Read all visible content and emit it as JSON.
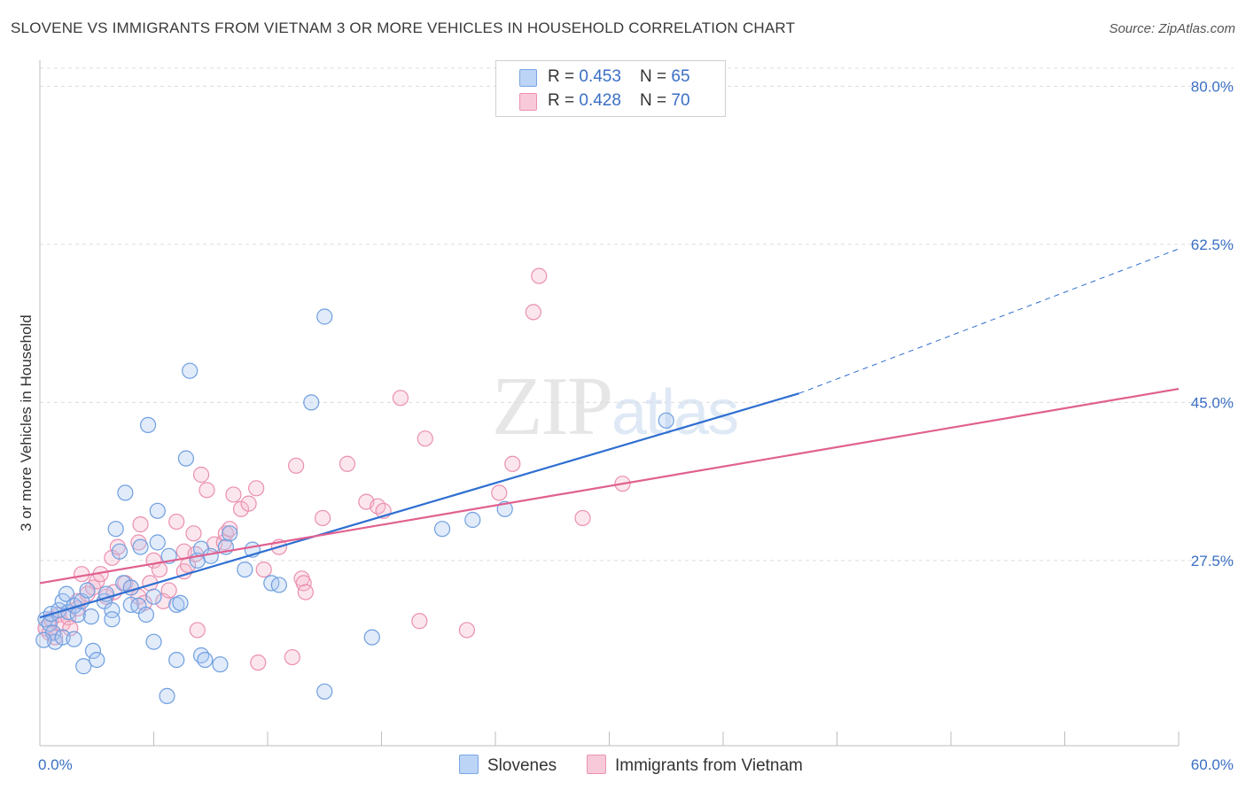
{
  "title": "SLOVENE VS IMMIGRANTS FROM VIETNAM 3 OR MORE VEHICLES IN HOUSEHOLD CORRELATION CHART",
  "source": "Source: ZipAtlas.com",
  "watermark": {
    "zip": "ZIP",
    "atlas": "atlas"
  },
  "colors": {
    "blue": "#2e6fd1",
    "blue_fill": "#a9c7f0",
    "pink": "#e0608f",
    "pink_fill": "#f5b6cb",
    "tick": "#3a6fc4"
  },
  "legend": [
    {
      "r_label": "R = ",
      "r": "0.453",
      "n_label": "N = ",
      "n": "65"
    },
    {
      "r_label": "R = ",
      "r": "0.428",
      "n_label": "N = ",
      "n": "70"
    }
  ],
  "chart_data": {
    "type": "scatter",
    "title": "SLOVENE VS IMMIGRANTS FROM VIETNAM 3 OR MORE VEHICLES IN HOUSEHOLD CORRELATION CHART",
    "xlabel": "",
    "ylabel": "3 or more Vehicles in Household",
    "xlim": [
      0,
      60
    ],
    "ylim": [
      7,
      82
    ],
    "x_tick_labels": [
      "0.0%",
      "60.0%"
    ],
    "y_ticks": [
      27.5,
      45.0,
      62.5,
      80.0
    ],
    "y_tick_labels": [
      "27.5%",
      "45.0%",
      "62.5%",
      "80.0%"
    ],
    "grid": true,
    "legend_position": "top-center",
    "series": [
      {
        "name": "Slovenes",
        "color": "#2e6fd1",
        "r": 0.453,
        "n": 65,
        "trend": {
          "x": [
            0,
            40
          ],
          "y": [
            21.2,
            46.0
          ],
          "dashed_to": [
            60,
            62.0
          ]
        },
        "points": [
          [
            0.3,
            21.0
          ],
          [
            0.5,
            20.5
          ],
          [
            0.6,
            21.6
          ],
          [
            0.7,
            19.5
          ],
          [
            0.8,
            18.5
          ],
          [
            1.0,
            22.0
          ],
          [
            1.2,
            23.0
          ],
          [
            1.2,
            19.0
          ],
          [
            1.4,
            23.8
          ],
          [
            1.5,
            21.8
          ],
          [
            1.8,
            22.5
          ],
          [
            1.8,
            18.8
          ],
          [
            2.0,
            21.5
          ],
          [
            2.2,
            23.0
          ],
          [
            2.3,
            15.8
          ],
          [
            2.5,
            24.2
          ],
          [
            2.7,
            21.3
          ],
          [
            2.8,
            17.5
          ],
          [
            3.0,
            16.5
          ],
          [
            3.4,
            23.0
          ],
          [
            3.5,
            23.8
          ],
          [
            3.8,
            22.0
          ],
          [
            3.8,
            21.0
          ],
          [
            4.0,
            31.0
          ],
          [
            4.2,
            28.5
          ],
          [
            4.4,
            25.0
          ],
          [
            4.5,
            35.0
          ],
          [
            4.8,
            24.5
          ],
          [
            4.8,
            22.6
          ],
          [
            5.2,
            22.5
          ],
          [
            5.3,
            29.0
          ],
          [
            5.6,
            21.5
          ],
          [
            5.7,
            42.5
          ],
          [
            6.0,
            23.5
          ],
          [
            6.0,
            18.5
          ],
          [
            6.2,
            33.0
          ],
          [
            6.2,
            29.5
          ],
          [
            6.8,
            28.0
          ],
          [
            6.7,
            12.5
          ],
          [
            7.2,
            22.6
          ],
          [
            7.4,
            22.8
          ],
          [
            7.2,
            16.5
          ],
          [
            7.7,
            38.8
          ],
          [
            7.9,
            48.5
          ],
          [
            8.3,
            27.5
          ],
          [
            8.5,
            28.8
          ],
          [
            8.5,
            17.0
          ],
          [
            8.7,
            16.5
          ],
          [
            9.0,
            28.0
          ],
          [
            9.5,
            16.0
          ],
          [
            9.8,
            29.0
          ],
          [
            10.0,
            30.5
          ],
          [
            10.8,
            26.5
          ],
          [
            11.2,
            28.7
          ],
          [
            12.2,
            25.0
          ],
          [
            12.6,
            24.8
          ],
          [
            14.3,
            45.0
          ],
          [
            15.0,
            54.5
          ],
          [
            15.0,
            13.0
          ],
          [
            17.5,
            19.0
          ],
          [
            21.2,
            31.0
          ],
          [
            22.8,
            32.0
          ],
          [
            24.5,
            33.2
          ],
          [
            33.0,
            43.0
          ],
          [
            0.2,
            18.7
          ]
        ]
      },
      {
        "name": "Immigrants from Vietnam",
        "color": "#e0608f",
        "r": 0.428,
        "n": 70,
        "trend": {
          "x": [
            0,
            60
          ],
          "y": [
            25.0,
            46.5
          ]
        },
        "points": [
          [
            0.3,
            20.0
          ],
          [
            0.5,
            19.5
          ],
          [
            0.6,
            21.0
          ],
          [
            0.8,
            19.0
          ],
          [
            1.0,
            21.5
          ],
          [
            1.2,
            20.5
          ],
          [
            1.5,
            21.2
          ],
          [
            1.6,
            20.0
          ],
          [
            2.0,
            23.0
          ],
          [
            2.0,
            22.2
          ],
          [
            2.2,
            26.0
          ],
          [
            2.5,
            23.8
          ],
          [
            2.8,
            24.5
          ],
          [
            3.0,
            25.2
          ],
          [
            3.2,
            26.0
          ],
          [
            3.5,
            23.5
          ],
          [
            3.9,
            24.0
          ],
          [
            3.8,
            27.8
          ],
          [
            4.1,
            29.0
          ],
          [
            4.5,
            25.0
          ],
          [
            4.8,
            24.5
          ],
          [
            5.2,
            23.5
          ],
          [
            5.2,
            29.5
          ],
          [
            5.3,
            31.5
          ],
          [
            5.5,
            22.8
          ],
          [
            5.8,
            25.0
          ],
          [
            6.0,
            27.5
          ],
          [
            6.3,
            26.5
          ],
          [
            6.5,
            23.0
          ],
          [
            6.8,
            24.2
          ],
          [
            7.2,
            31.8
          ],
          [
            7.6,
            28.5
          ],
          [
            7.6,
            26.3
          ],
          [
            7.8,
            27.0
          ],
          [
            8.1,
            30.5
          ],
          [
            8.2,
            28.2
          ],
          [
            8.3,
            19.8
          ],
          [
            8.5,
            37.0
          ],
          [
            8.8,
            35.3
          ],
          [
            9.2,
            29.3
          ],
          [
            9.7,
            29.5
          ],
          [
            9.8,
            30.5
          ],
          [
            10.0,
            31.0
          ],
          [
            10.2,
            34.8
          ],
          [
            10.6,
            33.2
          ],
          [
            11.0,
            33.8
          ],
          [
            11.4,
            35.5
          ],
          [
            11.5,
            16.2
          ],
          [
            11.8,
            26.5
          ],
          [
            12.6,
            29.0
          ],
          [
            13.5,
            38.0
          ],
          [
            13.3,
            16.8
          ],
          [
            13.8,
            25.5
          ],
          [
            13.9,
            25.0
          ],
          [
            14.0,
            24.0
          ],
          [
            14.9,
            32.2
          ],
          [
            16.2,
            38.2
          ],
          [
            17.2,
            34.0
          ],
          [
            17.8,
            33.5
          ],
          [
            18.1,
            33.0
          ],
          [
            19.0,
            45.5
          ],
          [
            20.0,
            20.8
          ],
          [
            20.3,
            41.0
          ],
          [
            22.5,
            19.8
          ],
          [
            24.2,
            35.0
          ],
          [
            24.9,
            38.2
          ],
          [
            26.0,
            55.0
          ],
          [
            26.3,
            59.0
          ],
          [
            30.7,
            36.0
          ],
          [
            28.6,
            32.2
          ]
        ]
      }
    ]
  },
  "bottom_legend": [
    {
      "name": "Slovenes"
    },
    {
      "name": "Immigrants from Vietnam"
    }
  ]
}
